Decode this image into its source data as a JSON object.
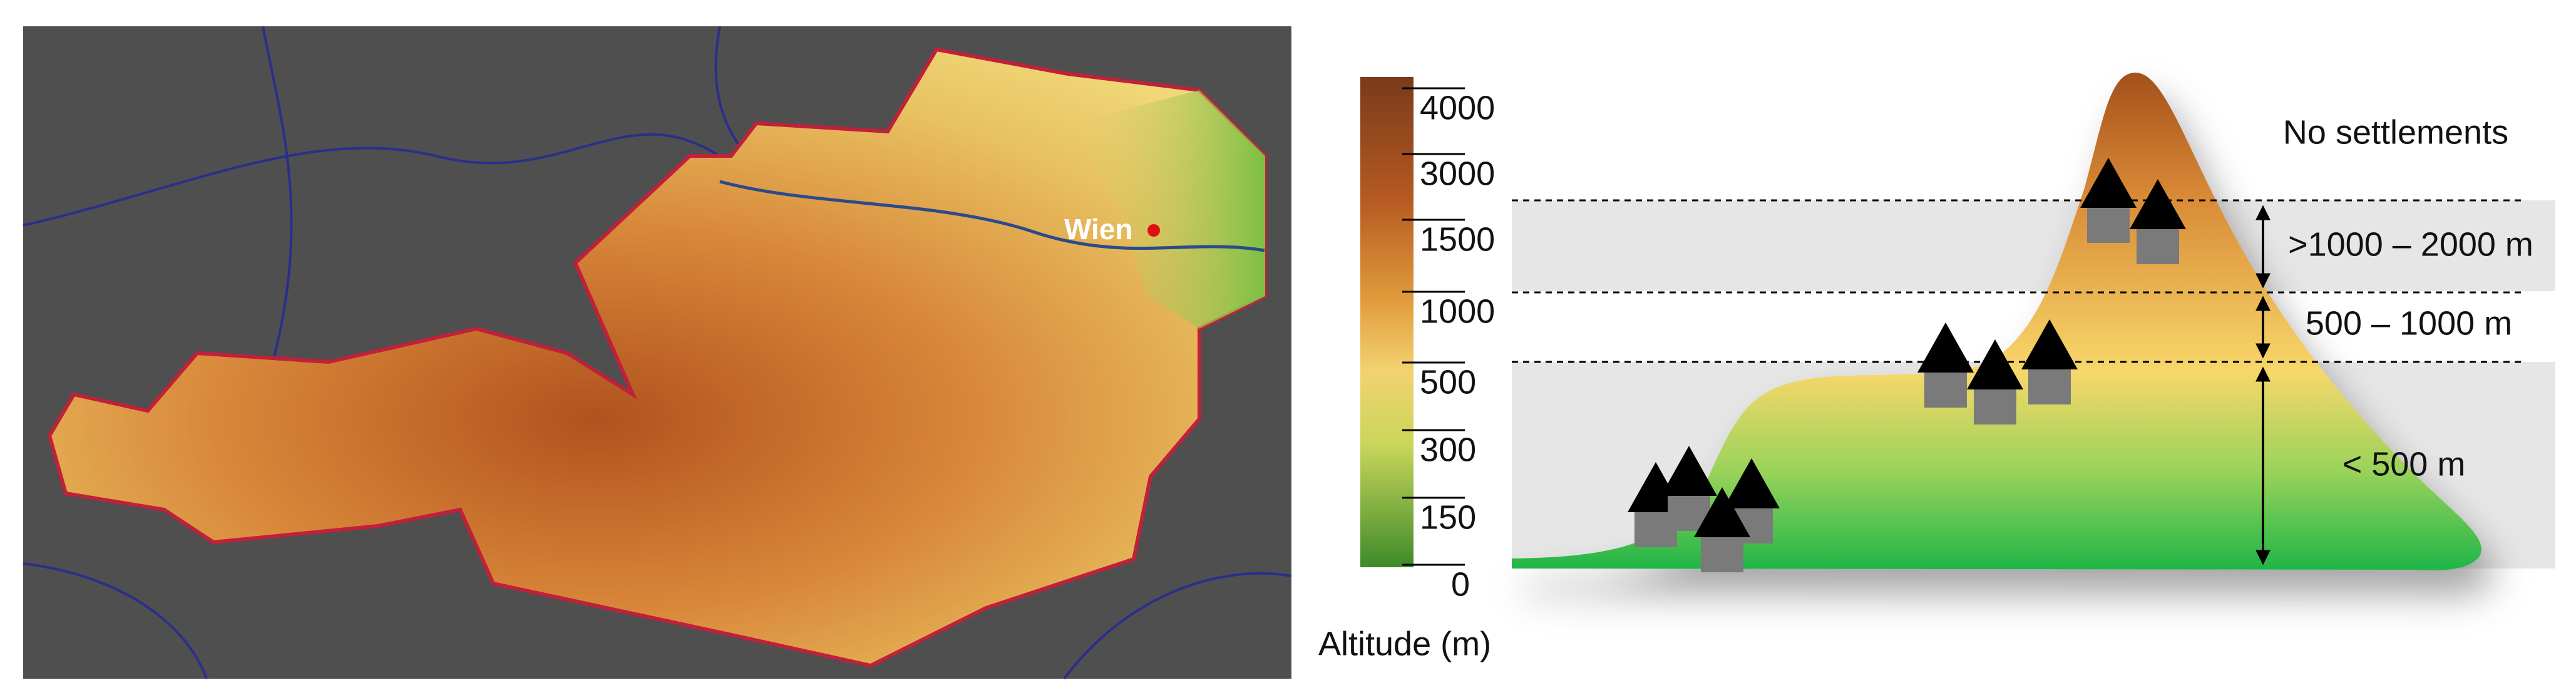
{
  "map": {
    "city_label": "Wien"
  },
  "legend": {
    "title": "Altitude (m)",
    "ticks": [
      "4000",
      "3000",
      "1500",
      "1000",
      "500",
      "300",
      "150",
      "0"
    ]
  },
  "diagram": {
    "bands": [
      "No settlements",
      ">1000 – 2000 m",
      "500 – 1000 m",
      "< 500 m"
    ]
  }
}
